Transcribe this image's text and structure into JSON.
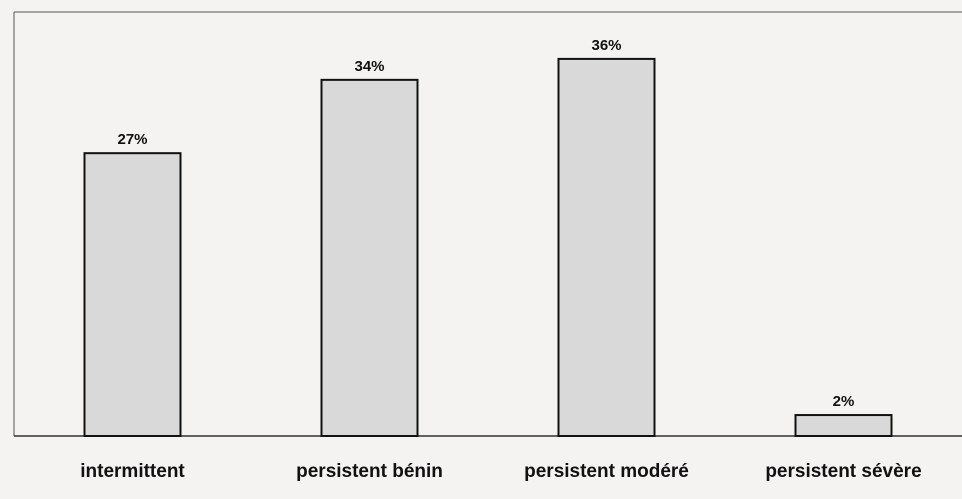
{
  "chart_data": {
    "type": "bar",
    "categories": [
      "intermittent",
      "persistent bénin",
      "persistent modéré",
      "persistent sévère"
    ],
    "values": [
      27,
      34,
      36,
      2
    ],
    "value_labels": [
      "27%",
      "34%",
      "36%",
      "2%"
    ],
    "color": "#d9d9d9",
    "ylim": [
      0,
      40
    ]
  }
}
